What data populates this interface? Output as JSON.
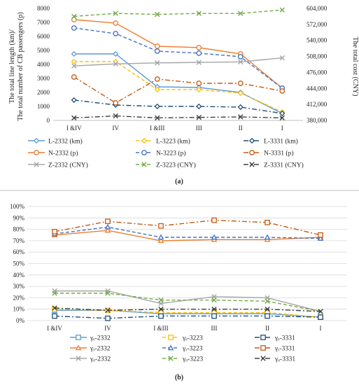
{
  "panels": {
    "a": {
      "caption": "(a)"
    },
    "b": {
      "caption": "(b)"
    }
  },
  "chart_data": [
    {
      "type": "line",
      "categories": [
        "I &IV",
        "IV",
        "I &III",
        "III",
        "II",
        "I"
      ],
      "ylabel_left_line1": "The total line length (km)/",
      "ylabel_left_line2": "The total number of CB passengers (p)",
      "ylabel_right": "The total cost (CNY)",
      "ylim_left": [
        0,
        8000
      ],
      "yticks_left": [
        "0",
        "1000",
        "2000",
        "3000",
        "4000",
        "5000",
        "6000",
        "7000",
        "8000"
      ],
      "ylim_right": [
        380000,
        604000
      ],
      "yticks_right": [
        "380,000",
        "412,000",
        "444,000",
        "476,000",
        "508,000",
        "540,000",
        "572,000",
        "604,000"
      ],
      "legend_position": "bottom",
      "series": [
        {
          "name": "L-2332 (km)",
          "axis": "left",
          "color": "#5b9bd5",
          "dash": "solid",
          "marker": "diamond",
          "values": [
            4750,
            4750,
            2400,
            2350,
            2000,
            500
          ]
        },
        {
          "name": "L-3223 (km)",
          "axis": "left",
          "color": "#ffc000",
          "dash": "dash",
          "marker": "diamond",
          "values": [
            4200,
            4200,
            2200,
            2200,
            1950,
            600
          ]
        },
        {
          "name": "L-3331 (km)",
          "axis": "left",
          "color": "#1f4e79",
          "dash": "dashdot",
          "marker": "diamond",
          "values": [
            1450,
            1100,
            1000,
            1000,
            950,
            500
          ]
        },
        {
          "name": "N-2332 (p)",
          "axis": "left",
          "color": "#ed7d31",
          "dash": "solid",
          "marker": "circle",
          "values": [
            7200,
            6950,
            5300,
            5200,
            4750,
            2300
          ]
        },
        {
          "name": "N-3223 (p)",
          "axis": "left",
          "color": "#4472c4",
          "dash": "dash",
          "marker": "circle",
          "values": [
            6600,
            6200,
            4950,
            4800,
            4550,
            2300
          ]
        },
        {
          "name": "N-3331 (p)",
          "axis": "left",
          "color": "#c55a11",
          "dash": "dashdot",
          "marker": "circle",
          "values": [
            3100,
            1250,
            2950,
            2650,
            2650,
            2100
          ]
        },
        {
          "name": "Z-2332 (CNY)",
          "axis": "right",
          "color": "#a5a5a5",
          "dash": "solid",
          "marker": "x",
          "values": [
            489000,
            493000,
            495000,
            496000,
            497000,
            505000
          ]
        },
        {
          "name": "Z-3223 (CNY)",
          "axis": "right",
          "color": "#70ad47",
          "dash": "dash",
          "marker": "x",
          "values": [
            588000,
            594000,
            592000,
            594000,
            594000,
            601000
          ]
        },
        {
          "name": "Z-3331 (CNY)",
          "axis": "right",
          "color": "#404040",
          "dash": "dashdot",
          "marker": "x",
          "values": [
            385000,
            389000,
            385000,
            386000,
            387000,
            385000
          ]
        }
      ]
    },
    {
      "type": "line",
      "categories": [
        "I &IV",
        "IV",
        "I &III",
        "III",
        "II",
        "I"
      ],
      "ylim": [
        0,
        100
      ],
      "yticks": [
        "0%",
        "10%",
        "20%",
        "30%",
        "40%",
        "50%",
        "60%",
        "70%",
        "80%",
        "90%",
        "100%"
      ],
      "legend_position": "bottom",
      "series": [
        {
          "name": "γₑ-2332",
          "color": "#5b9bd5",
          "dash": "solid",
          "marker": "square",
          "values": [
            9,
            9,
            6,
            6,
            6,
            3
          ]
        },
        {
          "name": "γₑ-3223",
          "color": "#ffc000",
          "dash": "dash",
          "marker": "square",
          "values": [
            10,
            9,
            7,
            7,
            7,
            3
          ]
        },
        {
          "name": "γₑ-3331",
          "color": "#1f4e79",
          "dash": "dashdot",
          "marker": "square",
          "values": [
            4,
            2,
            4,
            4,
            4,
            3
          ]
        },
        {
          "name": "γᵣ-2332",
          "color": "#ed7d31",
          "dash": "solid",
          "marker": "triangle",
          "values": [
            75,
            79,
            70,
            71,
            71,
            73
          ]
        },
        {
          "name": "γᵣ-3223",
          "color": "#4472c4",
          "dash": "dash",
          "marker": "triangle",
          "values": [
            76,
            82,
            73,
            73,
            73,
            72
          ]
        },
        {
          "name": "γᵣ-3331",
          "color": "#c55a11",
          "dash": "dashdot",
          "marker": "square",
          "values": [
            78,
            87,
            83,
            88,
            86,
            75
          ]
        },
        {
          "name": "γₒ-2332",
          "color": "#a5a5a5",
          "dash": "solid",
          "marker": "x",
          "values": [
            26,
            26,
            15,
            21,
            20,
            8
          ]
        },
        {
          "name": "γₒ-3223",
          "color": "#70ad47",
          "dash": "dash",
          "marker": "x",
          "values": [
            24,
            24,
            18,
            18,
            17,
            8
          ]
        },
        {
          "name": "γₒ-3331",
          "color": "#404040",
          "dash": "dashdot",
          "marker": "x",
          "values": [
            11,
            9,
            10,
            10,
            10,
            8
          ]
        }
      ]
    }
  ]
}
